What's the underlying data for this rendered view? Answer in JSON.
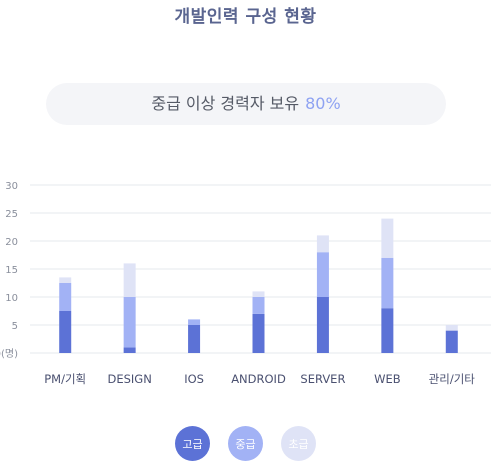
{
  "page": {
    "title": "개발인력 구성 현황",
    "summary_label": "중급 이상 경력자 보유",
    "summary_value": "80%"
  },
  "colors": {
    "senior": "#5c72d6",
    "mid": "#a2b2f5",
    "junior": "#dfe3f6",
    "grid": "#e6e8ee",
    "tick_text": "#8a8f9c",
    "category_text": "#4a5070"
  },
  "chart_data": {
    "type": "bar",
    "stacked": true,
    "categories": [
      "PM/기획",
      "DESIGN",
      "IOS",
      "ANDROID",
      "SERVER",
      "WEB",
      "관리/기타"
    ],
    "series": [
      {
        "name": "고급",
        "values": [
          7.5,
          1,
          5,
          7,
          10,
          8,
          4
        ]
      },
      {
        "name": "중급",
        "values": [
          5,
          9,
          1,
          3,
          8,
          9,
          0
        ]
      },
      {
        "name": "초급",
        "values": [
          1,
          6,
          0,
          1,
          3,
          7,
          1
        ]
      }
    ],
    "ylim": [
      0,
      30
    ],
    "yticks": [
      "0(명)",
      "5",
      "10",
      "15",
      "20",
      "25",
      "30"
    ],
    "grid": true
  },
  "legend": [
    {
      "label": "고급",
      "color_key": "senior"
    },
    {
      "label": "중급",
      "color_key": "mid"
    },
    {
      "label": "초급",
      "color_key": "junior"
    }
  ]
}
